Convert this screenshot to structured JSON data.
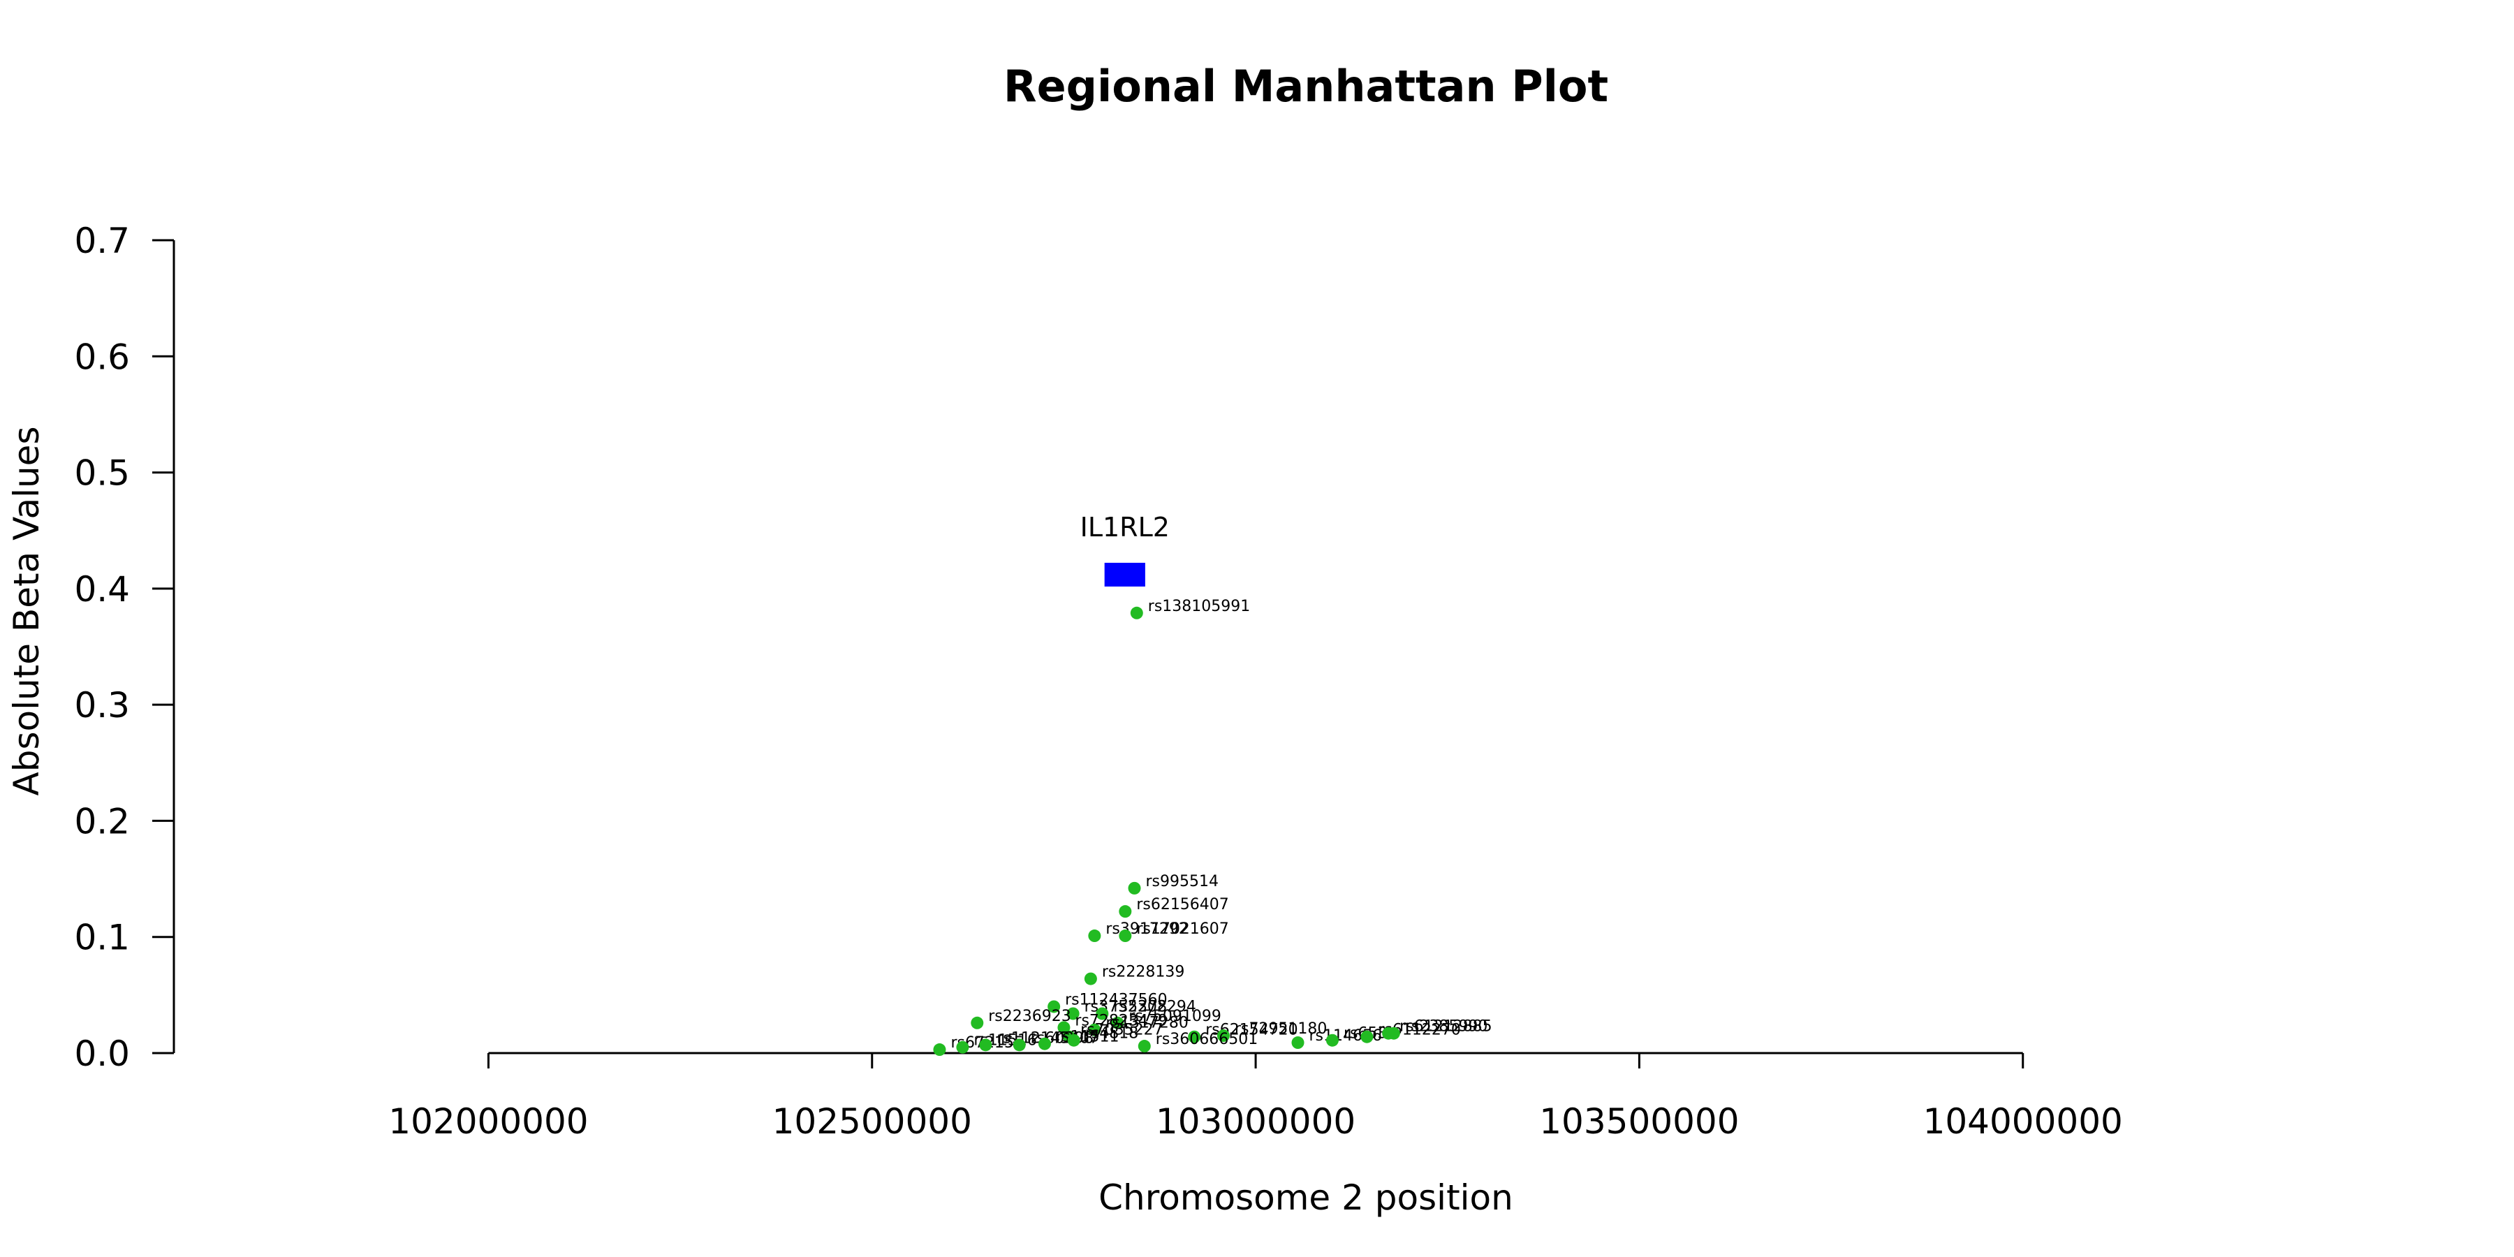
{
  "chart_data": {
    "type": "scatter",
    "title": "Regional Manhattan Plot",
    "xlabel": "Chromosome 2 position",
    "ylabel": "Absolute Beta Values",
    "xlim": [
      101590000,
      104540000
    ],
    "ylim": [
      0,
      0.7
    ],
    "xticks": [
      102000000,
      102500000,
      103000000,
      103500000,
      104000000
    ],
    "yticks": [
      0.0,
      0.1,
      0.2,
      0.3,
      0.4,
      0.5,
      0.6,
      0.7
    ],
    "ytick_labels": [
      "0.0",
      "0.1",
      "0.2",
      "0.3",
      "0.4",
      "0.5",
      "0.6",
      "0.7"
    ],
    "grid": false,
    "point_color": "#22bb22",
    "genes": [
      {
        "name": "IL1RL2",
        "start": 102803000,
        "end": 102856000,
        "y": 0.412,
        "color": "#0000ff"
      }
    ],
    "points": [
      {
        "label": "rs138105991",
        "x": 102845000,
        "y": 0.379
      },
      {
        "label": "rs995514",
        "x": 102842000,
        "y": 0.142
      },
      {
        "label": "rs62156407",
        "x": 102830000,
        "y": 0.122
      },
      {
        "label": "rs3917292",
        "x": 102790000,
        "y": 0.101
      },
      {
        "label": "rs17021607",
        "x": 102830000,
        "y": 0.101
      },
      {
        "label": "rs2228139",
        "x": 102785000,
        "y": 0.064
      },
      {
        "label": "rs112437560",
        "x": 102737000,
        "y": 0.04
      },
      {
        "label": "rs3755278",
        "x": 102762000,
        "y": 0.034
      },
      {
        "label": "rs2302294",
        "x": 102800000,
        "y": 0.034
      },
      {
        "label": "rs2236923",
        "x": 102637000,
        "y": 0.026
      },
      {
        "label": "rs75091099",
        "x": 102820000,
        "y": 0.026
      },
      {
        "label": "rs72823479",
        "x": 102750000,
        "y": 0.022
      },
      {
        "label": "rs1317280",
        "x": 102790000,
        "y": 0.02
      },
      {
        "label": "rs7035227",
        "x": 102757000,
        "y": 0.014
      },
      {
        "label": "rs62154720",
        "x": 102920000,
        "y": 0.014
      },
      {
        "label": "rs72951180",
        "x": 102958000,
        "y": 0.015
      },
      {
        "label": "rs114656",
        "x": 103055000,
        "y": 0.009
      },
      {
        "label": "rs653",
        "x": 103100000,
        "y": 0.011
      },
      {
        "label": "rs6112270",
        "x": 103145000,
        "y": 0.014
      },
      {
        "label": "rs61212885",
        "x": 103173000,
        "y": 0.017
      },
      {
        "label": "rs2385990",
        "x": 103180000,
        "y": 0.017
      },
      {
        "label": "rs360666501",
        "x": 102855000,
        "y": 0.006
      },
      {
        "label": "rs672155",
        "x": 102588000,
        "y": 0.003
      },
      {
        "label": "rs11516",
        "x": 102618000,
        "y": 0.005
      },
      {
        "label": "rs112145407",
        "x": 102648000,
        "y": 0.007
      },
      {
        "label": "rs60298",
        "x": 102692000,
        "y": 0.007
      },
      {
        "label": "rs11511",
        "x": 102725000,
        "y": 0.008
      },
      {
        "label": "rs4818",
        "x": 102763000,
        "y": 0.011
      }
    ]
  }
}
